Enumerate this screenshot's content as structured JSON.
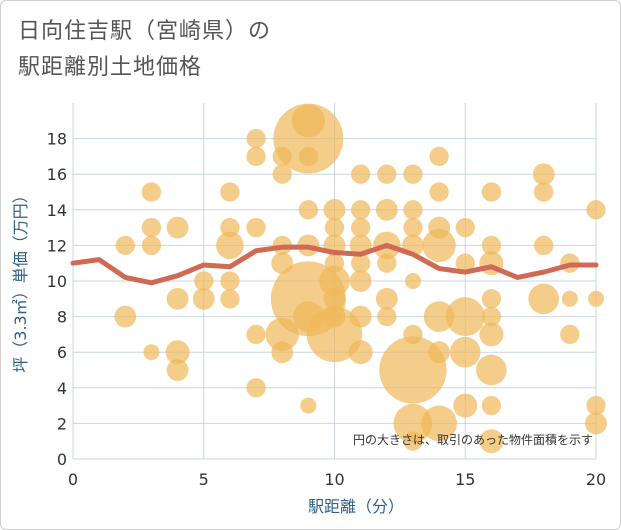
{
  "title_line1": "日向住吉駅（宮崎県）の",
  "title_line2": "駅距離別土地価格",
  "note": "円の大きさは、取引のあった物件面積を示す",
  "colors": {
    "bubble": "#f0b85a",
    "line": "#d06a55",
    "grid": "#c8d6e6",
    "axis_text": "#2e5f8a"
  },
  "chart_data": {
    "type": "scatter",
    "xlabel": "駅距離（分）",
    "ylabel": "坪（3.3㎡）単価（万円）",
    "xlim": [
      0,
      20
    ],
    "ylim": [
      0,
      20
    ],
    "xticks": [
      0,
      5,
      10,
      15,
      20
    ],
    "yticks": [
      0,
      2,
      4,
      6,
      8,
      10,
      12,
      14,
      16,
      18
    ],
    "points": [
      {
        "x": 2,
        "y": 12,
        "s": 2
      },
      {
        "x": 2,
        "y": 8,
        "s": 3
      },
      {
        "x": 3,
        "y": 15,
        "s": 2
      },
      {
        "x": 3,
        "y": 13,
        "s": 2
      },
      {
        "x": 3,
        "y": 12,
        "s": 2
      },
      {
        "x": 3,
        "y": 6,
        "s": 1
      },
      {
        "x": 4,
        "y": 13,
        "s": 3
      },
      {
        "x": 4,
        "y": 9,
        "s": 3
      },
      {
        "x": 4,
        "y": 6,
        "s": 4
      },
      {
        "x": 4,
        "y": 5,
        "s": 3
      },
      {
        "x": 5,
        "y": 10,
        "s": 2
      },
      {
        "x": 5,
        "y": 9,
        "s": 3
      },
      {
        "x": 6,
        "y": 15,
        "s": 2
      },
      {
        "x": 6,
        "y": 13,
        "s": 2
      },
      {
        "x": 6,
        "y": 12,
        "s": 6
      },
      {
        "x": 6,
        "y": 10,
        "s": 2
      },
      {
        "x": 6,
        "y": 9,
        "s": 2
      },
      {
        "x": 7,
        "y": 18,
        "s": 2
      },
      {
        "x": 7,
        "y": 17,
        "s": 2
      },
      {
        "x": 7,
        "y": 13,
        "s": 2
      },
      {
        "x": 7,
        "y": 7,
        "s": 2
      },
      {
        "x": 7,
        "y": 4,
        "s": 2
      },
      {
        "x": 8,
        "y": 17,
        "s": 2
      },
      {
        "x": 8,
        "y": 16,
        "s": 2
      },
      {
        "x": 8,
        "y": 12,
        "s": 2
      },
      {
        "x": 8,
        "y": 11,
        "s": 3
      },
      {
        "x": 8,
        "y": 7,
        "s": 10
      },
      {
        "x": 8,
        "y": 6,
        "s": 3
      },
      {
        "x": 9,
        "y": 19,
        "s": 10
      },
      {
        "x": 9,
        "y": 18,
        "s": 60
      },
      {
        "x": 9,
        "y": 17,
        "s": 2
      },
      {
        "x": 9,
        "y": 14,
        "s": 2
      },
      {
        "x": 9,
        "y": 12,
        "s": 3
      },
      {
        "x": 9,
        "y": 9,
        "s": 70
      },
      {
        "x": 9,
        "y": 8,
        "s": 8
      },
      {
        "x": 9,
        "y": 3,
        "s": 1
      },
      {
        "x": 10,
        "y": 14,
        "s": 3
      },
      {
        "x": 10,
        "y": 13,
        "s": 2
      },
      {
        "x": 10,
        "y": 12,
        "s": 3
      },
      {
        "x": 10,
        "y": 11,
        "s": 2
      },
      {
        "x": 10,
        "y": 10,
        "s": 8
      },
      {
        "x": 10,
        "y": 9,
        "s": 3
      },
      {
        "x": 10,
        "y": 8,
        "s": 3
      },
      {
        "x": 10,
        "y": 7,
        "s": 35
      },
      {
        "x": 11,
        "y": 16,
        "s": 2
      },
      {
        "x": 11,
        "y": 14,
        "s": 2
      },
      {
        "x": 11,
        "y": 13,
        "s": 2
      },
      {
        "x": 11,
        "y": 12,
        "s": 3
      },
      {
        "x": 11,
        "y": 11,
        "s": 2
      },
      {
        "x": 11,
        "y": 10,
        "s": 3
      },
      {
        "x": 11,
        "y": 8,
        "s": 3
      },
      {
        "x": 11,
        "y": 6,
        "s": 4
      },
      {
        "x": 12,
        "y": 16,
        "s": 2
      },
      {
        "x": 12,
        "y": 14,
        "s": 3
      },
      {
        "x": 12,
        "y": 12,
        "s": 6
      },
      {
        "x": 12,
        "y": 11,
        "s": 2
      },
      {
        "x": 12,
        "y": 9,
        "s": 3
      },
      {
        "x": 12,
        "y": 8,
        "s": 2
      },
      {
        "x": 13,
        "y": 16,
        "s": 2
      },
      {
        "x": 13,
        "y": 14,
        "s": 2
      },
      {
        "x": 13,
        "y": 13,
        "s": 2
      },
      {
        "x": 13,
        "y": 12,
        "s": 3
      },
      {
        "x": 13,
        "y": 10,
        "s": 1
      },
      {
        "x": 13,
        "y": 7,
        "s": 2
      },
      {
        "x": 13,
        "y": 5,
        "s": 55
      },
      {
        "x": 13,
        "y": 2,
        "s": 15
      },
      {
        "x": 13,
        "y": 1,
        "s": 2
      },
      {
        "x": 14,
        "y": 17,
        "s": 2
      },
      {
        "x": 14,
        "y": 15,
        "s": 2
      },
      {
        "x": 14,
        "y": 13,
        "s": 3
      },
      {
        "x": 14,
        "y": 12,
        "s": 10
      },
      {
        "x": 14,
        "y": 8,
        "s": 8
      },
      {
        "x": 14,
        "y": 6,
        "s": 3
      },
      {
        "x": 14,
        "y": 2,
        "s": 12
      },
      {
        "x": 15,
        "y": 13,
        "s": 2
      },
      {
        "x": 15,
        "y": 11,
        "s": 2
      },
      {
        "x": 15,
        "y": 8,
        "s": 15
      },
      {
        "x": 15,
        "y": 6,
        "s": 8
      },
      {
        "x": 15,
        "y": 3,
        "s": 4
      },
      {
        "x": 16,
        "y": 15,
        "s": 2
      },
      {
        "x": 16,
        "y": 12,
        "s": 2
      },
      {
        "x": 16,
        "y": 11,
        "s": 4
      },
      {
        "x": 16,
        "y": 9,
        "s": 2
      },
      {
        "x": 16,
        "y": 8,
        "s": 2
      },
      {
        "x": 16,
        "y": 7,
        "s": 4
      },
      {
        "x": 16,
        "y": 5,
        "s": 8
      },
      {
        "x": 16,
        "y": 3,
        "s": 2
      },
      {
        "x": 16,
        "y": 1,
        "s": 4
      },
      {
        "x": 18,
        "y": 16,
        "s": 3
      },
      {
        "x": 18,
        "y": 15,
        "s": 2
      },
      {
        "x": 18,
        "y": 12,
        "s": 2
      },
      {
        "x": 18,
        "y": 9,
        "s": 8
      },
      {
        "x": 19,
        "y": 11,
        "s": 2
      },
      {
        "x": 19,
        "y": 9,
        "s": 1
      },
      {
        "x": 19,
        "y": 7,
        "s": 2
      },
      {
        "x": 20,
        "y": 14,
        "s": 2
      },
      {
        "x": 20,
        "y": 9,
        "s": 1
      },
      {
        "x": 20,
        "y": 3,
        "s": 2
      },
      {
        "x": 20,
        "y": 2,
        "s": 3
      }
    ],
    "trend": {
      "x": [
        0,
        1,
        2,
        3,
        4,
        5,
        6,
        7,
        8,
        9,
        10,
        11,
        12,
        13,
        14,
        15,
        16,
        17,
        18,
        19,
        20
      ],
      "y": [
        11.0,
        11.2,
        10.2,
        9.9,
        10.3,
        10.9,
        10.8,
        11.7,
        11.9,
        11.9,
        11.6,
        11.5,
        12.0,
        11.5,
        10.7,
        10.5,
        10.8,
        10.2,
        10.5,
        10.9,
        10.9
      ]
    }
  }
}
